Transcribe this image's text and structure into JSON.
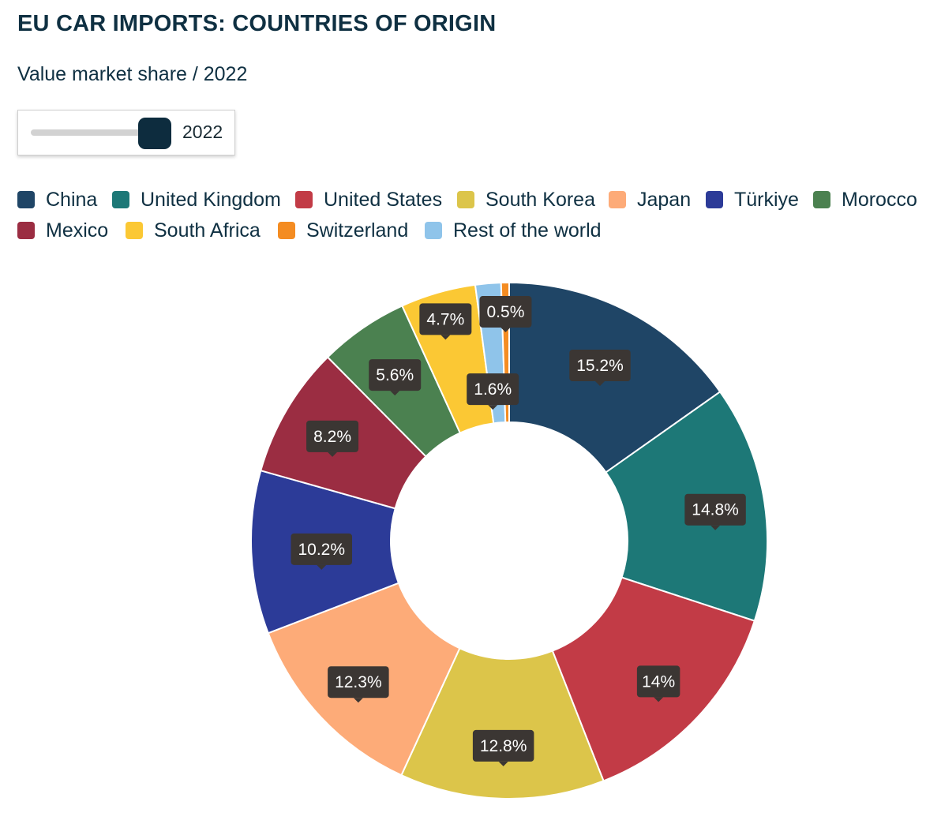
{
  "header": {
    "title": "EU CAR IMPORTS: COUNTRIES OF ORIGIN",
    "subtitle": "Value market share / 2022"
  },
  "slider": {
    "value_label": "2022",
    "position": 1.0
  },
  "colors": {
    "label_bg": "#3b3633",
    "text": "#0f3042"
  },
  "chart_data": {
    "type": "pie",
    "donut": true,
    "title": "EU CAR IMPORTS: COUNTRIES OF ORIGIN",
    "subtitle": "Value market share / 2022",
    "legend_position": "top",
    "categories": [
      "China",
      "United Kingdom",
      "United States",
      "South Korea",
      "Japan",
      "Türkiye",
      "Morocco",
      "Mexico",
      "South Africa",
      "Switzerland",
      "Rest of the world"
    ],
    "values": [
      15.2,
      14.8,
      14,
      12.8,
      12.3,
      10.2,
      5.6,
      8.2,
      4.7,
      0.5,
      1.6
    ],
    "value_labels": [
      "15.2%",
      "14.8%",
      "14%",
      "12.8%",
      "12.3%",
      "10.2%",
      "5.6%",
      "8.2%",
      "4.7%",
      "0.5%",
      "1.6%"
    ],
    "colors": [
      "#1f4566",
      "#1d7877",
      "#c23b46",
      "#dcc54a",
      "#fdab78",
      "#2c3b98",
      "#4b8150",
      "#9b2d42",
      "#fbc834",
      "#f48c22",
      "#8fc4ea"
    ],
    "slice_order": [
      "China",
      "United Kingdom",
      "United States",
      "South Korea",
      "Japan",
      "Türkiye",
      "Mexico",
      "Morocco",
      "South Africa",
      "Rest of the world",
      "Switzerland"
    ]
  }
}
